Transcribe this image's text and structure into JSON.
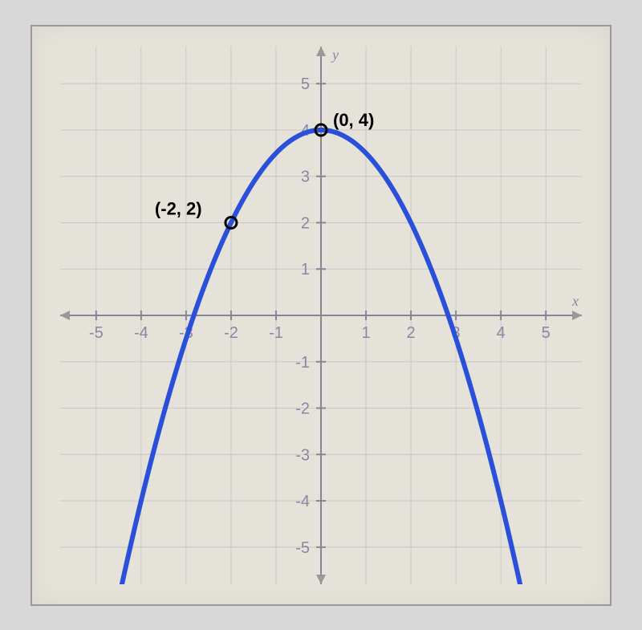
{
  "chart": {
    "type": "parabola",
    "background_color": "#e5e2da",
    "grid_color": "#b8b4c4",
    "axis_color": "#888494",
    "curve_color": "#2a4fd8",
    "xlim": [
      -5.8,
      5.8
    ],
    "ylim": [
      -5.8,
      5.8
    ],
    "xticks": [
      -5,
      -4,
      -3,
      -2,
      -1,
      1,
      2,
      3,
      4,
      5
    ],
    "yticks": [
      -5,
      -4,
      -3,
      -2,
      -1,
      1,
      2,
      3,
      4,
      5
    ],
    "x_axis_label": "x",
    "y_axis_label": "y",
    "vertex": [
      0,
      4
    ],
    "coefficient": -0.5,
    "points": [
      {
        "coords": [
          0,
          4
        ],
        "label": "(0, 4)",
        "label_offset": [
          15,
          -5
        ]
      },
      {
        "coords": [
          -2,
          2
        ],
        "label": "(-2, 2)",
        "label_offset": [
          -95,
          -10
        ]
      }
    ],
    "tick_fontsize": 20,
    "point_label_fontsize": 22,
    "point_marker_radius": 7,
    "curve_width": 6
  }
}
